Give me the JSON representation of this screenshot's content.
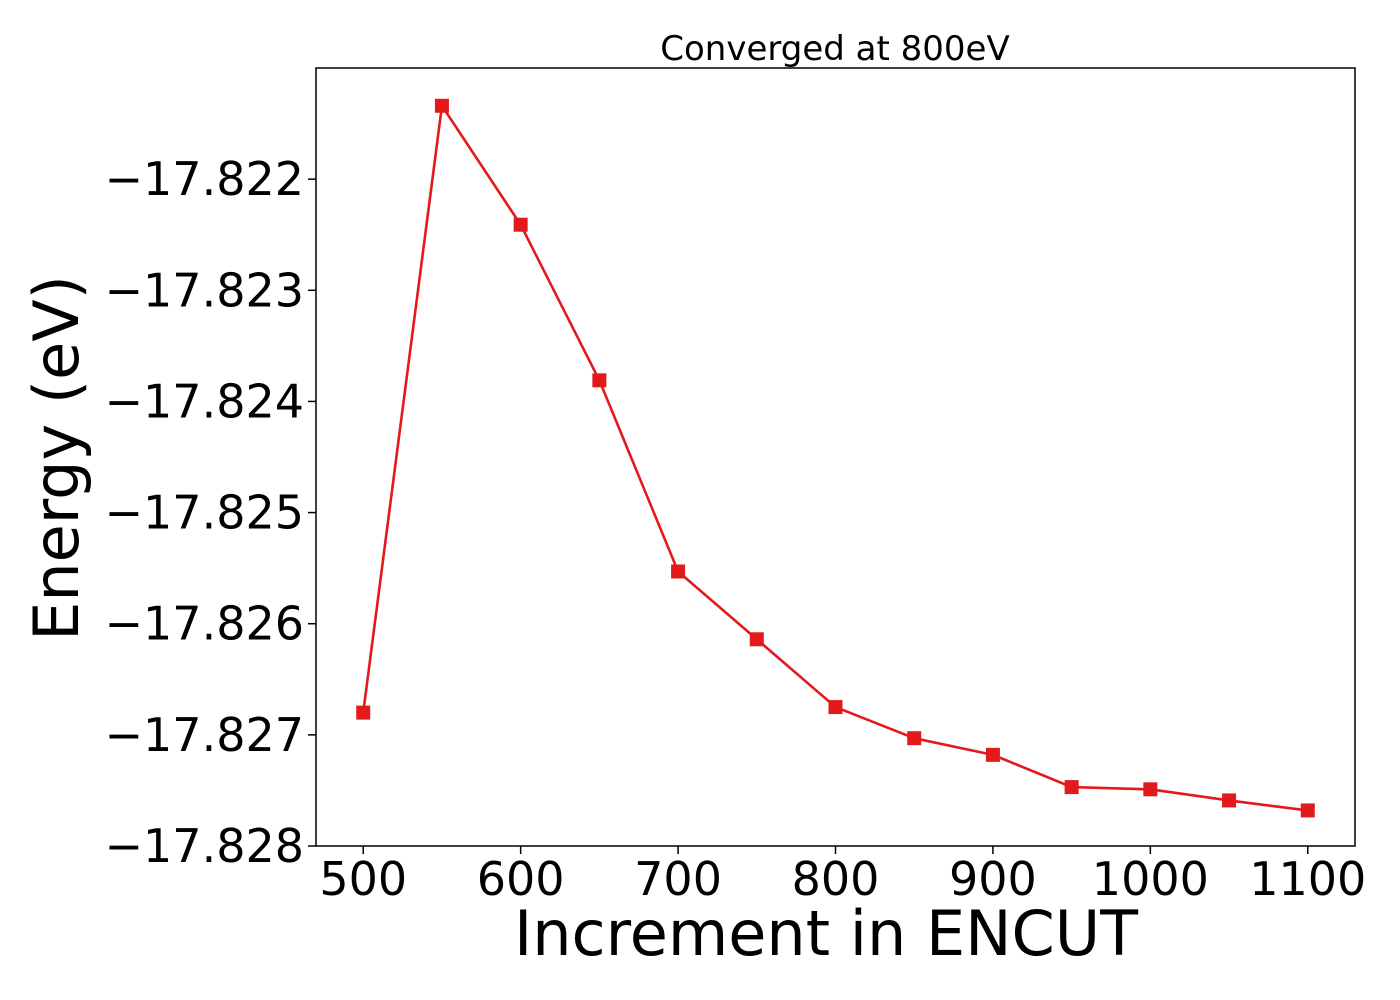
{
  "chart_data": {
    "type": "line",
    "title": "Converged at 800eV",
    "xlabel": "Increment in ENCUT",
    "ylabel": "Energy (eV)",
    "xlim": [
      470,
      1130
    ],
    "ylim": [
      -17.828,
      -17.821
    ],
    "xticks": [
      500,
      600,
      700,
      800,
      900,
      1000,
      1100
    ],
    "yticks": [
      -17.822,
      -17.823,
      -17.824,
      -17.825,
      -17.826,
      -17.827,
      -17.828
    ],
    "ytick_labels": [
      "−17.822",
      "−17.823",
      "−17.824",
      "−17.825",
      "−17.826",
      "−17.827",
      "−17.828"
    ],
    "grid": false,
    "legend": "none",
    "marker": "square",
    "color": "#e31a1c",
    "series": [
      {
        "x": [
          500,
          550,
          600,
          650,
          700,
          750,
          800,
          850,
          900,
          950,
          1000,
          1050,
          1100
        ],
        "y": [
          -17.8268,
          -17.82134,
          -17.82241,
          -17.82381,
          -17.82553,
          -17.82614,
          -17.82675,
          -17.82703,
          -17.82718,
          -17.82747,
          -17.82749,
          -17.82759,
          -17.82768
        ]
      }
    ]
  }
}
